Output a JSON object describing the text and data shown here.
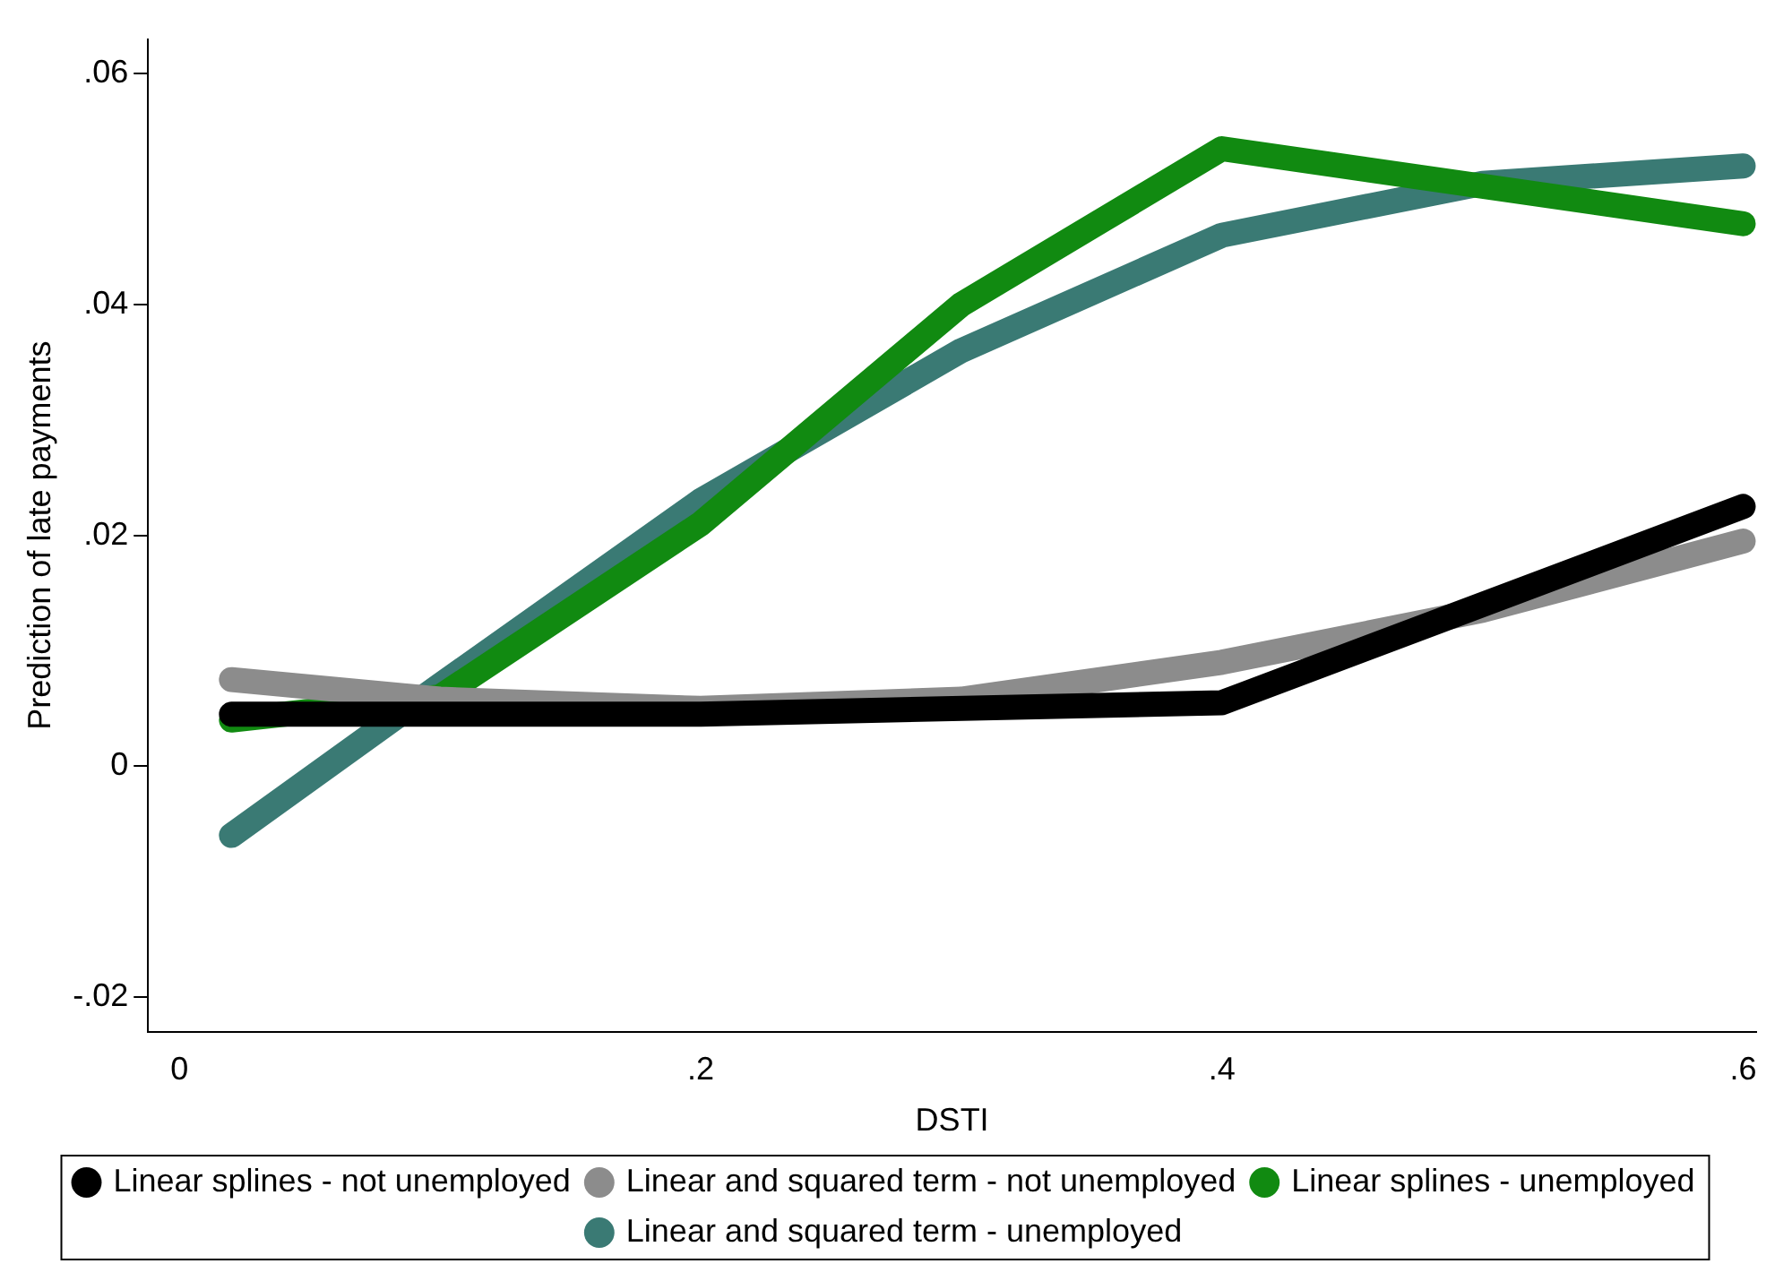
{
  "chart_data": {
    "type": "line",
    "xlabel": "DSTI",
    "ylabel": "Prediction of late payments",
    "xlim": [
      -0.012,
      0.605
    ],
    "ylim": [
      -0.023,
      0.063
    ],
    "xticks": [
      {
        "value": 0,
        "label": "0"
      },
      {
        "value": 0.2,
        "label": ".2"
      },
      {
        "value": 0.4,
        "label": ".4"
      },
      {
        "value": 0.6,
        "label": ".6"
      }
    ],
    "yticks": [
      {
        "value": -0.02,
        "label": "-.02"
      },
      {
        "value": 0,
        "label": "0"
      },
      {
        "value": 0.02,
        "label": ".02"
      },
      {
        "value": 0.04,
        "label": ".04"
      },
      {
        "value": 0.06,
        "label": ".06"
      }
    ],
    "grid": false,
    "legend": "bottom",
    "marker": "none",
    "line_style": "solid",
    "series": [
      {
        "name": "Linear splines - not unemployed",
        "color": "#000000",
        "x": [
          0.02,
          0.2,
          0.4,
          0.6
        ],
        "values": [
          0.0045,
          0.0045,
          0.0055,
          0.0225
        ]
      },
      {
        "name": "Linear and squared term - not unemployed",
        "color": "#8c8c8c",
        "x": [
          0.02,
          0.1,
          0.2,
          0.3,
          0.4,
          0.5,
          0.6
        ],
        "values": [
          0.0075,
          0.0058,
          0.005,
          0.0058,
          0.009,
          0.0135,
          0.0195
        ]
      },
      {
        "name": "Linear splines - unemployed",
        "color": "#118a11",
        "x": [
          0.02,
          0.1,
          0.2,
          0.3,
          0.4,
          0.6
        ],
        "values": [
          0.004,
          0.006,
          0.021,
          0.04,
          0.0535,
          0.047
        ]
      },
      {
        "name": "Linear and squared term - unemployed",
        "color": "#3a7a74",
        "x": [
          0.02,
          0.1,
          0.2,
          0.3,
          0.4,
          0.5,
          0.6
        ],
        "values": [
          -0.006,
          0.007,
          0.023,
          0.036,
          0.046,
          0.0505,
          0.052
        ]
      }
    ]
  }
}
